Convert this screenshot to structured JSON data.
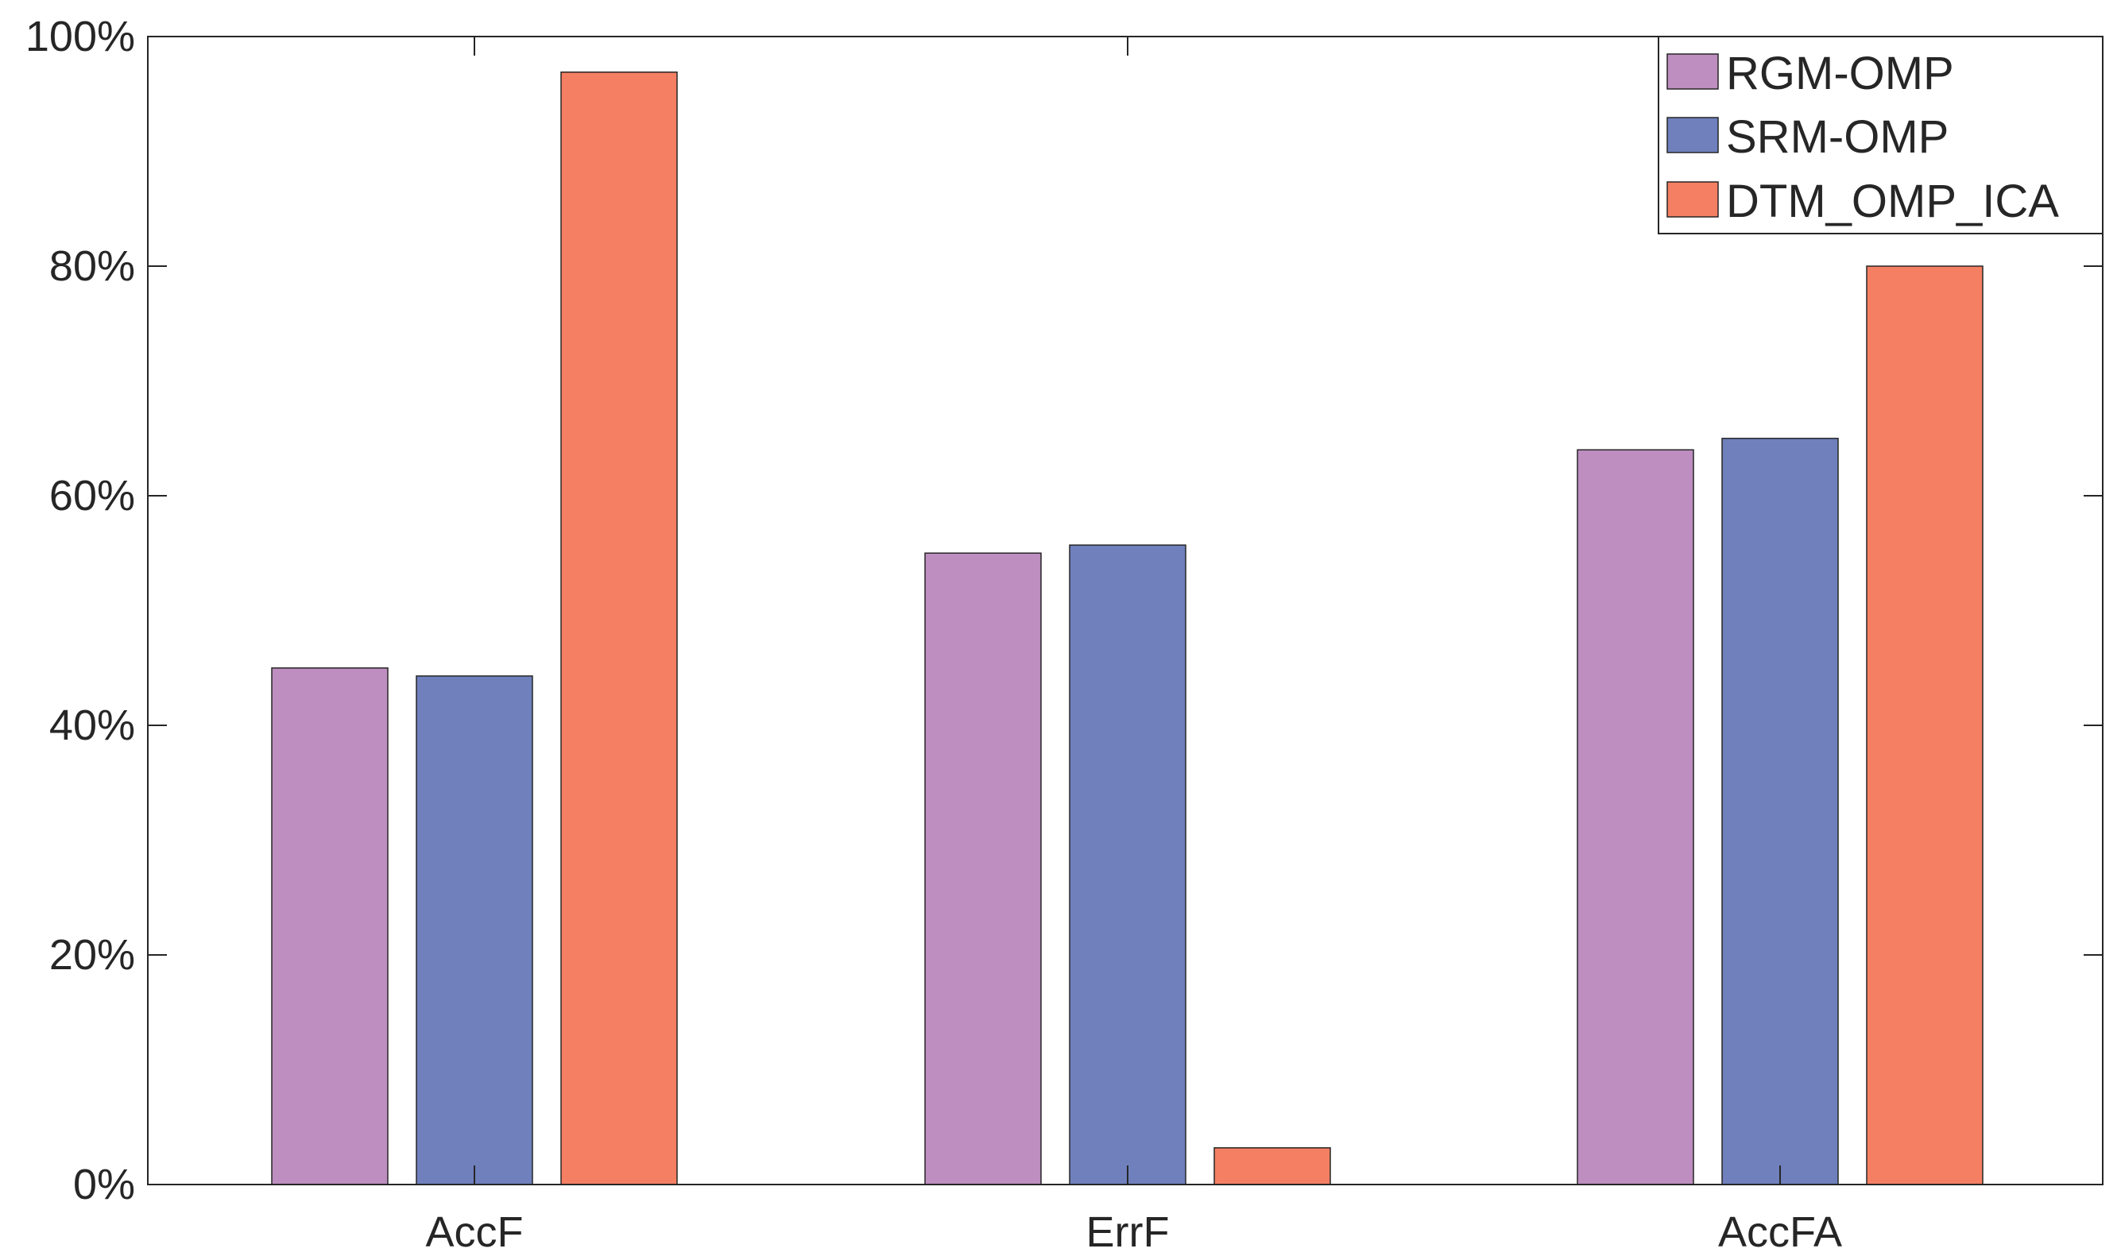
{
  "chart_data": {
    "type": "bar",
    "title": "",
    "xlabel": "",
    "ylabel": "",
    "categories": [
      "AccF",
      "ErrF",
      "AccFA"
    ],
    "series": [
      {
        "name": "RGM-OMP",
        "color": "#bd8ebf",
        "values": [
          45.0,
          55.0,
          64.0
        ]
      },
      {
        "name": "SRM-OMP",
        "color": "#6f80bd",
        "values": [
          44.3,
          55.7,
          65.0
        ]
      },
      {
        "name": "DTM_OMP_ICA",
        "color": "#f47f63",
        "values": [
          96.9,
          3.2,
          80.0
        ]
      }
    ],
    "ylim": [
      0,
      100
    ],
    "yticks": [
      "0%",
      "20%",
      "40%",
      "60%",
      "80%",
      "100%"
    ],
    "ytick_values": [
      0,
      20,
      40,
      60,
      80,
      100
    ],
    "grid": false,
    "legend_position": "top-right"
  }
}
